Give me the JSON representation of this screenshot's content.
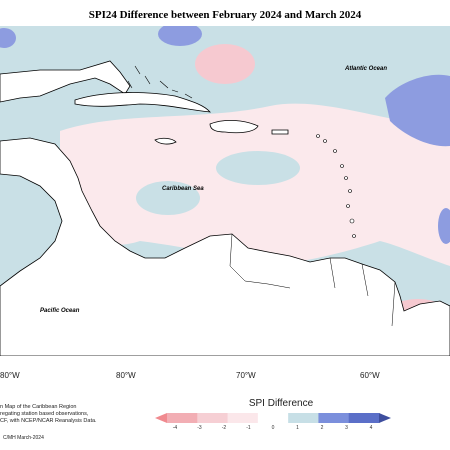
{
  "map": {
    "title": "SPI24 Difference between February 2024 and March 2024",
    "region_labels": {
      "atlantic": "Atlantic Ocean",
      "caribbean": "Caribbean Sea",
      "pacific": "Pacific Ocean"
    },
    "lon_labels": [
      "80°W",
      "80°W",
      "70°W",
      "60°W"
    ],
    "credits": [
      "n Map of the Caribbean Region",
      "regating station based observations,",
      "CF, with NCEP/NCAR Reanalysis Data."
    ],
    "copyright": "C/MH March-2024",
    "colors": {
      "ocean_positive": "#c9e0e6",
      "land_neutral": "#fbe9ec",
      "strong_positive": "#8d9ce0",
      "negative": "#f6c9d0",
      "strong_negative": "#e79aa4"
    }
  },
  "legend": {
    "title": "SPI Difference",
    "ticks": [
      "-4",
      "-3",
      "-2",
      "-1",
      "0",
      "1",
      "2",
      "3",
      "4"
    ],
    "colors": [
      "#f08a8f",
      "#f2aeb4",
      "#f6cfd4",
      "#fbe7ea",
      "#ffffff",
      "#c7dfe6",
      "#7b8fdc",
      "#5b6fc8",
      "#3e4e9e"
    ]
  }
}
